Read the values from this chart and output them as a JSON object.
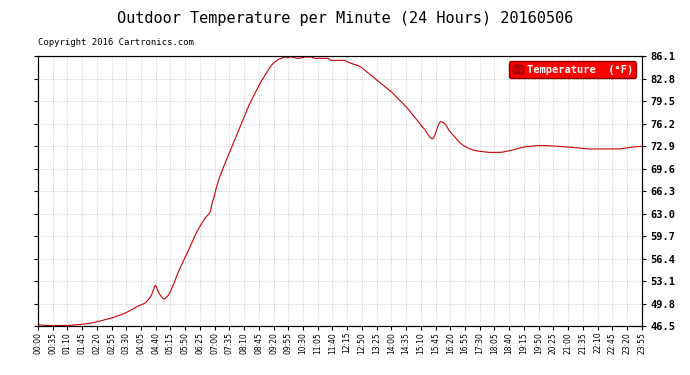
{
  "title": "Outdoor Temperature per Minute (24 Hours) 20160506",
  "copyright_text": "Copyright 2016 Cartronics.com",
  "legend_label": "Temperature  (°F)",
  "line_color": "#cc0000",
  "background_color": "#ffffff",
  "plot_bg_color": "#ffffff",
  "grid_color": "#aaaaaa",
  "yticks": [
    46.5,
    49.8,
    53.1,
    56.4,
    59.7,
    63.0,
    66.3,
    69.6,
    72.9,
    76.2,
    79.5,
    82.8,
    86.1
  ],
  "ylim": [
    46.5,
    86.1
  ],
  "xtick_labels": [
    "00:00",
    "00:35",
    "01:10",
    "01:45",
    "02:20",
    "02:55",
    "03:30",
    "04:05",
    "04:40",
    "05:15",
    "05:50",
    "06:25",
    "07:00",
    "07:35",
    "08:10",
    "08:45",
    "09:20",
    "09:55",
    "10:30",
    "11:05",
    "11:40",
    "12:15",
    "12:50",
    "13:25",
    "14:00",
    "14:35",
    "15:10",
    "15:45",
    "16:20",
    "16:55",
    "17:30",
    "18:05",
    "18:40",
    "19:15",
    "19:50",
    "20:25",
    "21:00",
    "21:35",
    "22:10",
    "22:45",
    "23:20",
    "23:55"
  ],
  "num_minutes": 1440,
  "key_points": {
    "0": 46.7,
    "30": 46.6,
    "60": 46.6,
    "90": 46.7,
    "120": 46.9,
    "150": 47.3,
    "180": 47.8,
    "210": 48.5,
    "240": 49.5,
    "255": 49.9,
    "260": 50.2,
    "270": 51.0,
    "275": 51.8,
    "280": 52.5,
    "285": 51.8,
    "290": 51.2,
    "295": 50.8,
    "300": 50.5,
    "310": 51.0,
    "320": 52.2,
    "330": 53.8,
    "340": 55.2,
    "350": 56.5,
    "360": 57.8,
    "370": 59.2,
    "380": 60.5,
    "390": 61.5,
    "400": 62.5,
    "410": 63.2,
    "415": 64.5,
    "420": 65.5,
    "425": 66.8,
    "430": 67.8,
    "440": 69.5,
    "450": 71.0,
    "460": 72.5,
    "470": 74.0,
    "480": 75.5,
    "490": 77.0,
    "500": 78.5,
    "510": 79.8,
    "520": 81.0,
    "530": 82.2,
    "540": 83.2,
    "550": 84.2,
    "560": 85.0,
    "570": 85.5,
    "575": 85.7,
    "580": 85.8,
    "585": 85.9,
    "590": 86.0,
    "595": 85.9,
    "600": 86.0,
    "605": 86.0,
    "610": 85.9,
    "620": 85.8,
    "630": 85.9,
    "640": 86.0,
    "645": 86.0,
    "650": 86.0,
    "660": 85.8,
    "670": 85.8,
    "680": 85.8,
    "690": 85.8,
    "700": 85.5,
    "710": 85.5,
    "720": 85.5,
    "730": 85.5,
    "740": 85.2,
    "750": 85.0,
    "760": 84.8,
    "770": 84.5,
    "780": 84.0,
    "790": 83.5,
    "800": 83.0,
    "820": 82.0,
    "840": 81.0,
    "860": 79.8,
    "880": 78.5,
    "900": 77.0,
    "920": 75.5,
    "940": 74.0,
    "960": 76.5,
    "970": 76.2,
    "980": 75.2,
    "990": 74.5,
    "1000": 73.8,
    "1010": 73.2,
    "1020": 72.8,
    "1030": 72.5,
    "1040": 72.3,
    "1060": 72.1,
    "1080": 72.0,
    "1100": 72.0,
    "1120": 72.2,
    "1140": 72.5,
    "1160": 72.8,
    "1200": 73.0,
    "1260": 72.8,
    "1320": 72.5,
    "1380": 72.5,
    "1420": 72.8,
    "1439": 72.9
  }
}
